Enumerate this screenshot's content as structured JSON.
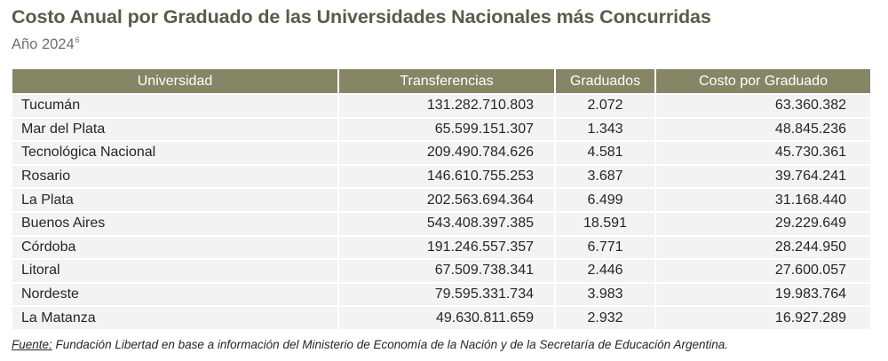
{
  "title": "Costo Anual por Graduado de las Universidades Nacionales más Concurridas",
  "subtitle": {
    "text": "Año 2024",
    "footnote": "6"
  },
  "table": {
    "headers": [
      "Universidad",
      "Transferencias",
      "Graduados",
      "Costo por Graduado"
    ],
    "rows": [
      [
        "Tucumán",
        "131.282.710.803",
        "2.072",
        "63.360.382"
      ],
      [
        "Mar del Plata",
        "65.599.151.307",
        "1.343",
        "48.845.236"
      ],
      [
        "Tecnológica Nacional",
        "209.490.784.626",
        "4.581",
        "45.730.361"
      ],
      [
        "Rosario",
        "146.610.755.253",
        "3.687",
        "39.764.241"
      ],
      [
        "La Plata",
        "202.563.694.364",
        "6.499",
        "31.168.440"
      ],
      [
        "Buenos Aires",
        "543.408.397.385",
        "18.591",
        "29.229.649"
      ],
      [
        "Córdoba",
        "191.246.557.357",
        "6.771",
        "28.244.950"
      ],
      [
        "Litoral",
        "67.509.738.341",
        "2.446",
        "27.600.057"
      ],
      [
        "Nordeste",
        "79.595.331.734",
        "3.983",
        "19.983.764"
      ],
      [
        "La Matanza",
        "49.630.811.659",
        "2.932",
        "16.927.289"
      ]
    ]
  },
  "source": {
    "label": "Fuente:",
    "text": " Fundación Libertad en base a información del Ministerio de Economía de la Nación y de la Secretaría de Educación Argentina."
  },
  "colors": {
    "header_bg": "#868565",
    "row_bg": "#f3f3f3",
    "title": "#5b5b4a"
  }
}
